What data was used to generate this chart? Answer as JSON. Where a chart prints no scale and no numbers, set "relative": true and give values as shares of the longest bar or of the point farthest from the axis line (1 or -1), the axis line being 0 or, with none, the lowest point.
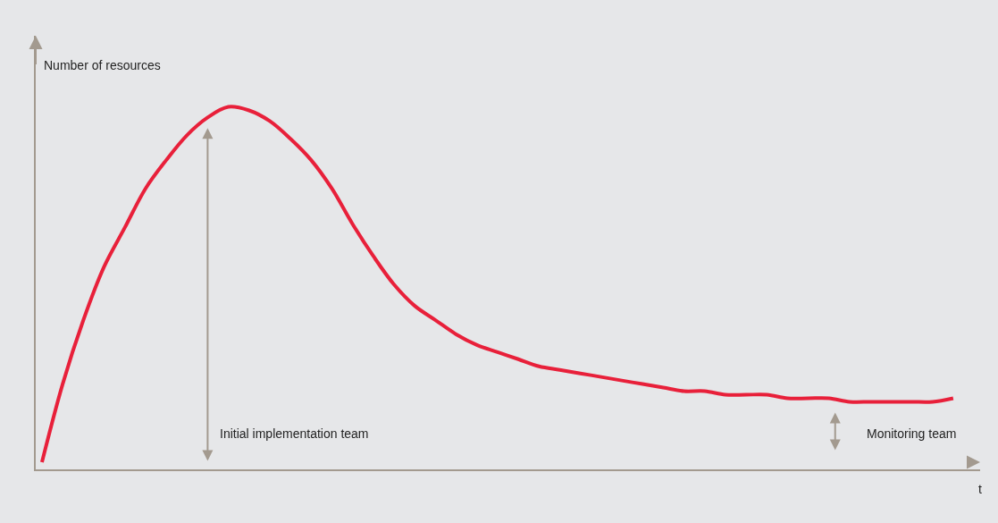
{
  "chart_data": {
    "type": "line",
    "relative": true,
    "xlabel": "t",
    "ylabel": "Number of resources",
    "categories": [
      null,
      null,
      null,
      null,
      null,
      null,
      null,
      null,
      null,
      null,
      null,
      null,
      null,
      null,
      null,
      null,
      null,
      null,
      null,
      null,
      null,
      null,
      null,
      null,
      null,
      null,
      null,
      null,
      null,
      null,
      null,
      null,
      null,
      null,
      null,
      null,
      null,
      null,
      null,
      null,
      null,
      null,
      null,
      null,
      null
    ],
    "series": [
      {
        "color": "#e8203a",
        "values": [
          0,
          0.22,
          0.4,
          0.55,
          0.66,
          0.77,
          0.85,
          0.92,
          0.97,
          1.0,
          0.99,
          0.96,
          0.91,
          0.85,
          0.77,
          0.67,
          0.58,
          0.5,
          0.44,
          0.4,
          0.36,
          0.33,
          0.31,
          0.29,
          0.27,
          0.26,
          0.25,
          0.24,
          0.23,
          0.22,
          0.21,
          0.2,
          0.2,
          0.19,
          0.19,
          0.19,
          0.18,
          0.18,
          0.18,
          0.17,
          0.17,
          0.17,
          0.17,
          0.17,
          0.18
        ]
      }
    ],
    "annotations": [
      "Initial implementation team",
      "Monitoring team"
    ],
    "grid": false,
    "marker": "none",
    "line_style": "solid"
  }
}
